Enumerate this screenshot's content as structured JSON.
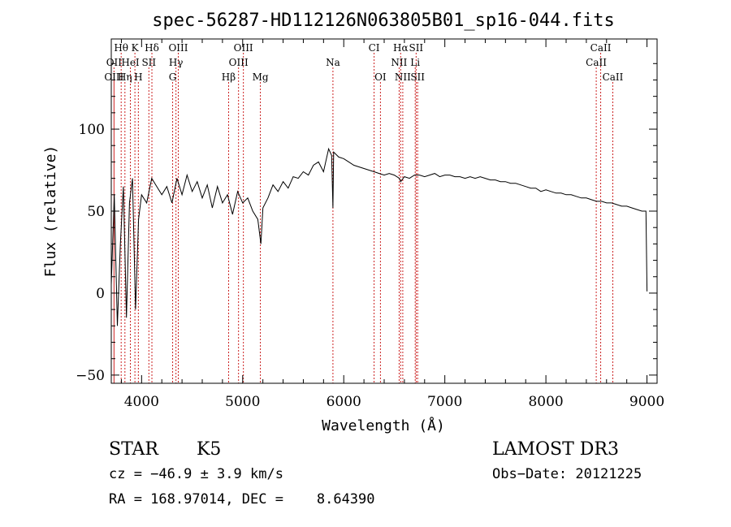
{
  "chart_data": {
    "type": "line",
    "title": "spec-56287-HD112126N063805B01_sp16-044.fits",
    "xlabel": "Wavelength (Å)",
    "ylabel": "Flux (relative)",
    "xlim": [
      3700,
      9100
    ],
    "ylim": [
      -55,
      155
    ],
    "xticks": [
      4000,
      5000,
      6000,
      7000,
      8000,
      9000
    ],
    "yticks": [
      -50,
      0,
      50,
      100
    ],
    "xtick_labels": [
      "4000",
      "5000",
      "6000",
      "7000",
      "8000",
      "9000"
    ],
    "ytick_labels": [
      "−50",
      "0",
      "50",
      "100"
    ],
    "line_color": "#000000",
    "marker_color": "#cc2222",
    "series": [
      {
        "x": [
          3700,
          3730,
          3760,
          3790,
          3820,
          3850,
          3880,
          3910,
          3940,
          3970,
          4000,
          4050,
          4100,
          4150,
          4200,
          4250,
          4300,
          4350,
          4400,
          4450,
          4500,
          4550,
          4600,
          4650,
          4700,
          4750,
          4800,
          4850,
          4900,
          4950,
          5000,
          5050,
          5100,
          5150,
          5180,
          5200,
          5250,
          5300,
          5350,
          5400,
          5450,
          5500,
          5550,
          5600,
          5650,
          5700,
          5750,
          5800,
          5850,
          5880,
          5893,
          5900,
          5950,
          6000,
          6050,
          6100,
          6150,
          6200,
          6250,
          6300,
          6350,
          6400,
          6450,
          6500,
          6550,
          6563,
          6600,
          6650,
          6700,
          6750,
          6800,
          6850,
          6900,
          6950,
          7000,
          7050,
          7100,
          7150,
          7200,
          7250,
          7300,
          7350,
          7400,
          7450,
          7500,
          7550,
          7600,
          7650,
          7700,
          7750,
          7800,
          7850,
          7900,
          7950,
          8000,
          8050,
          8100,
          8150,
          8200,
          8250,
          8300,
          8350,
          8400,
          8450,
          8500,
          8550,
          8600,
          8650,
          8700,
          8750,
          8800,
          8850,
          8900,
          8950,
          8990,
          9000
        ],
        "y": [
          5,
          60,
          -20,
          30,
          65,
          -15,
          55,
          70,
          -10,
          45,
          60,
          55,
          70,
          65,
          60,
          65,
          55,
          70,
          60,
          72,
          62,
          68,
          58,
          66,
          52,
          65,
          55,
          60,
          48,
          62,
          55,
          58,
          50,
          45,
          30,
          52,
          58,
          66,
          62,
          68,
          64,
          71,
          70,
          74,
          72,
          78,
          80,
          74,
          88,
          84,
          52,
          86,
          83,
          82,
          80,
          78,
          77,
          76,
          75,
          74,
          73,
          72,
          73,
          72,
          70,
          68,
          71,
          70,
          72,
          72,
          71,
          72,
          73,
          71,
          72,
          72,
          71,
          71,
          70,
          71,
          70,
          71,
          70,
          69,
          69,
          68,
          68,
          67,
          67,
          66,
          65,
          64,
          64,
          62,
          63,
          62,
          61,
          61,
          60,
          60,
          59,
          58,
          58,
          57,
          56,
          56,
          55,
          55,
          54,
          53,
          53,
          52,
          51,
          50,
          50,
          1
        ]
      }
    ],
    "lines": [
      {
        "label": "Hθ",
        "x": 3798,
        "row": 0
      },
      {
        "label": "K",
        "x": 3934,
        "row": 0
      },
      {
        "label": "Hδ",
        "x": 4102,
        "row": 0
      },
      {
        "label": "OIII",
        "x": 4363,
        "row": 0
      },
      {
        "label": "OIII",
        "x": 5007,
        "row": 0
      },
      {
        "label": "CI",
        "x": 6300,
        "row": 0
      },
      {
        "label": "Hα",
        "x": 6563,
        "row": 0
      },
      {
        "label": "SII",
        "x": 6716,
        "row": 0
      },
      {
        "label": "CaII",
        "x": 8542,
        "row": 0
      },
      {
        "label": "OII",
        "x": 3727,
        "row": 1
      },
      {
        "label": "HeI",
        "x": 3889,
        "row": 1
      },
      {
        "label": "SII",
        "x": 4072,
        "row": 1
      },
      {
        "label": "Hγ",
        "x": 4340,
        "row": 1
      },
      {
        "label": "OIII",
        "x": 4959,
        "row": 1
      },
      {
        "label": "Na",
        "x": 5893,
        "row": 1
      },
      {
        "label": "NII",
        "x": 6548,
        "row": 1
      },
      {
        "label": "Li",
        "x": 6707,
        "row": 1
      },
      {
        "label": "CaII",
        "x": 8498,
        "row": 1
      },
      {
        "label": "OIII",
        "x": 3727,
        "row": 2
      },
      {
        "label": "Hη",
        "x": 3835,
        "row": 2
      },
      {
        "label": "H",
        "x": 3968,
        "row": 2
      },
      {
        "label": "G",
        "x": 4307,
        "row": 2
      },
      {
        "label": "Hβ",
        "x": 4861,
        "row": 2
      },
      {
        "label": "Mg",
        "x": 5175,
        "row": 2
      },
      {
        "label": "OI",
        "x": 6363,
        "row": 2
      },
      {
        "label": "NII",
        "x": 6584,
        "row": 2
      },
      {
        "label": "SII",
        "x": 6731,
        "row": 2
      },
      {
        "label": "CaII",
        "x": 8662,
        "row": 2
      }
    ]
  },
  "info": {
    "class_label": "STAR",
    "subclass": "K5",
    "survey": "LAMOST DR3",
    "cz": "cz = −46.9 ± 3.9 km/s",
    "obs_date": "Obs−Date: 20121225",
    "radec": "RA = 168.97014, DEC =    8.64390"
  }
}
